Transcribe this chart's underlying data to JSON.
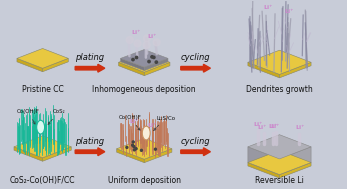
{
  "bg_color": "#c8ccd8",
  "top_row_labels": [
    "Pristine CC",
    "Inhomogeneous deposition",
    "Dendrites growth"
  ],
  "bottom_row_labels": [
    "CoS₂-Co(OH)F/CC",
    "Uniform deposition",
    "Reversible Li"
  ],
  "arrow_labels_top": [
    "plating",
    "cycling"
  ],
  "arrow_labels_bottom": [
    "plating",
    "cycling"
  ],
  "li_color": "#cc88cc",
  "arrow_color": "#d03010",
  "cc_yellow": "#e8c840",
  "cc_yellow_side": "#c8a820",
  "green_nano": "#18b898",
  "brown_nano": "#c07858",
  "grey_dendrite": "#888890",
  "grey_block": "#a8a8b2",
  "label_fontsize": 5.5,
  "arrow_label_fontsize": 6.0
}
